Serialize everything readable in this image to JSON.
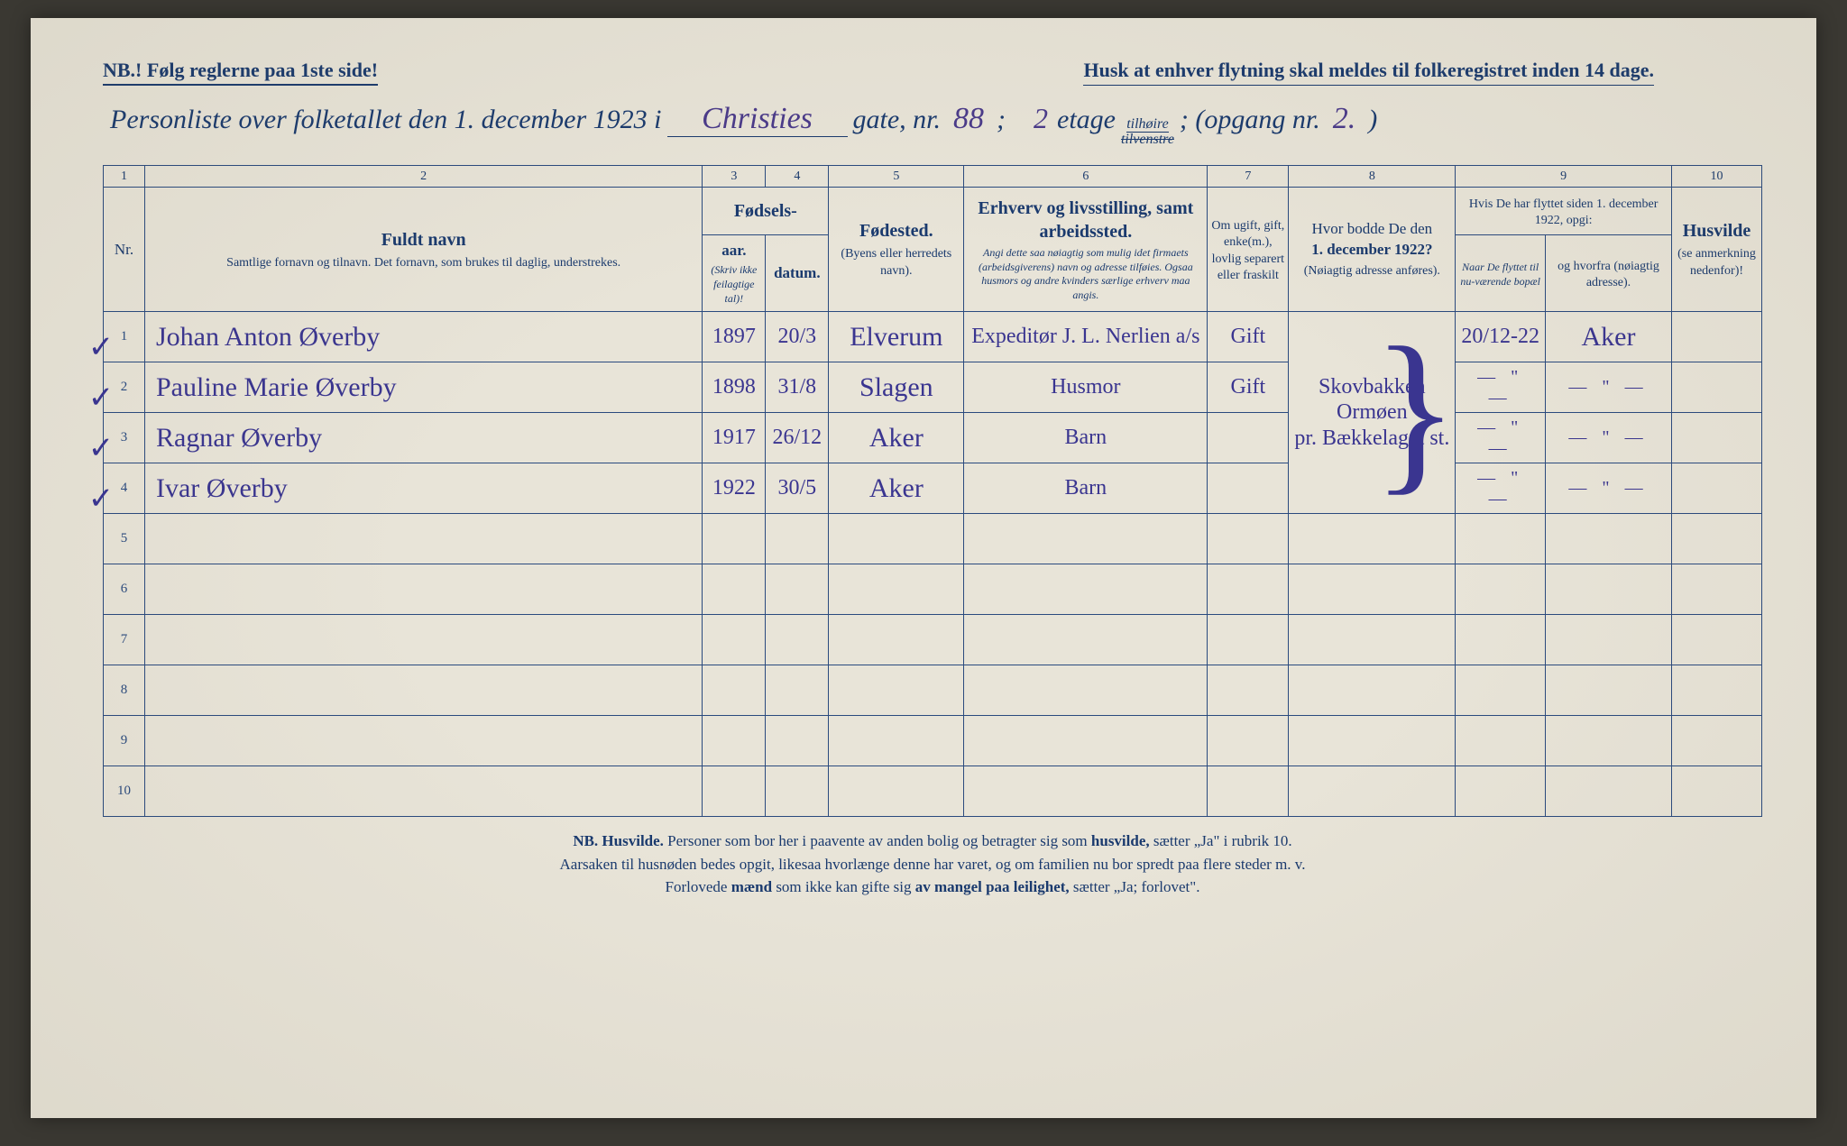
{
  "header": {
    "nb_left": "NB.! Følg reglerne paa 1ste side!",
    "reminder": "Husk at enhver flytning skal meldes til folkeregistret inden 14 dage.",
    "title_prefix": "Personliste over folketallet den 1. december 1923 i",
    "street": "Christies",
    "gate_label": "gate, nr.",
    "street_nr": "88",
    "semicolon": ";",
    "floor_nr": "2",
    "etage": "etage",
    "tilhoire": "tilhøire",
    "tilvenstre_struck": "tilvenstre",
    "opgang_label": "; (opgang nr.",
    "opgang_nr": "2.",
    "close_paren": ")"
  },
  "columns": {
    "c1": "1",
    "c2": "2",
    "c3": "3",
    "c4": "4",
    "c5": "5",
    "c6": "6",
    "c7": "7",
    "c8": "8",
    "c9": "9",
    "c10": "10",
    "nr": "Nr.",
    "name_title": "Fuldt navn",
    "name_sub": "Samtlige fornavn og tilnavn. Det fornavn, som brukes til daglig, understrekes.",
    "birth_title": "Fødsels-",
    "birth_year": "aar.",
    "birth_date": "datum.",
    "birth_note": "(Skriv ikke feilagtige tal)!",
    "birthplace_title": "Fødested.",
    "birthplace_sub": "(Byens eller herredets navn).",
    "occ_title": "Erhverv og livsstilling, samt arbeidssted.",
    "occ_sub": "Angi dette saa nøiagtig som mulig idet firmaets (arbeidsgiverens) navn og adresse tilføies. Ogsaa husmors og andre kvinders særlige erhverv maa angis.",
    "marital": "Om ugift, gift, enke(m.), lovlig separert eller fraskilt",
    "prev_title": "Hvor bodde De den",
    "prev_date": "1. december 1922?",
    "prev_sub": "(Nøiagtig adresse anføres).",
    "moved_title": "Hvis De har flyttet siden 1. december 1922, opgi:",
    "moved_when": "Naar De flyttet til nu-værende bopæl",
    "moved_from": "og hvorfra (nøiagtig adresse).",
    "husvilde_title": "Husvilde",
    "husvilde_sub": "(se anmerkning nedenfor)!"
  },
  "rows": [
    {
      "nr": "1",
      "name": "Johan Anton Øverby",
      "year": "1897",
      "date": "20/3",
      "place": "Elverum",
      "occ": "Expeditør J. L. Nerlien a/s",
      "marital": "Gift",
      "prev": "Skovbakken Ormøen pr. Bækkelaget st.",
      "moved_date": "20/12-22",
      "moved_from": "Aker"
    },
    {
      "nr": "2",
      "name": "Pauline Marie Øverby",
      "year": "1898",
      "date": "31/8",
      "place": "Slagen",
      "occ": "Husmor",
      "marital": "Gift",
      "prev": "",
      "moved_date": "— \" —",
      "moved_from": "— \" —"
    },
    {
      "nr": "3",
      "name": "Ragnar Øverby",
      "year": "1917",
      "date": "26/12",
      "place": "Aker",
      "occ": "Barn",
      "marital": "",
      "prev": "",
      "moved_date": "— \" —",
      "moved_from": "— \" —"
    },
    {
      "nr": "4",
      "name": "Ivar Øverby",
      "year": "1922",
      "date": "30/5",
      "place": "Aker",
      "occ": "Barn",
      "marital": "",
      "prev": "",
      "moved_date": "— \" —",
      "moved_from": "— \" —"
    }
  ],
  "empty_rows": [
    "5",
    "6",
    "7",
    "8",
    "9",
    "10"
  ],
  "footnote": {
    "l1_a": "NB. Husvilde.",
    "l1_b": " Personer som bor her i paavente av anden bolig og betragter sig som ",
    "l1_c": "husvilde,",
    "l1_d": " sætter „Ja\" i rubrik 10.",
    "l2": "Aarsaken til husnøden bedes opgit, likesaa hvorlænge denne har varet, og om familien nu bor spredt paa flere steder m. v.",
    "l3_a": "Forlovede ",
    "l3_b": "mænd",
    "l3_c": " som ikke kan gifte sig ",
    "l3_d": "av mangel paa leilighet,",
    "l3_e": " sætter „Ja; forlovet\"."
  }
}
